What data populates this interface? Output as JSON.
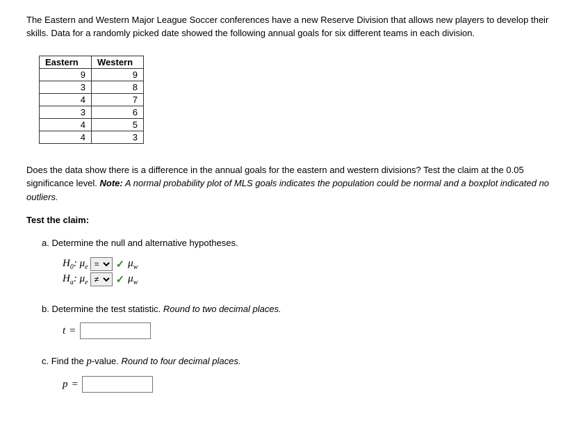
{
  "intro": "The Eastern and Western Major League Soccer conferences have a new Reserve Division that allows new players to develop their skills. Data for a randomly picked date showed the following annual goals for six different teams in each division.",
  "table": {
    "columns": [
      "Eastern",
      "Western"
    ],
    "rows": [
      [
        "9",
        "9"
      ],
      [
        "3",
        "8"
      ],
      [
        "4",
        "7"
      ],
      [
        "3",
        "6"
      ],
      [
        "4",
        "5"
      ],
      [
        "4",
        "3"
      ]
    ]
  },
  "question_text_1": "Does the data show there is a difference in the annual goals for the eastern and western divisions? Test the claim at the 0.05 significance level. ",
  "question_note_label": "Note:",
  "question_note_text": " A normal probability plot of MLS goals indicates the population could be normal and a boxplot indicated no outliers.",
  "test_claim_label": "Test the claim:",
  "part_a": {
    "label": "a. Determine the null and alternative hypotheses.",
    "h0_left": "H",
    "h0_sub": "0",
    "ha_left": "H",
    "ha_sub": "a",
    "mu_e": "μ",
    "mu_e_sub": "e",
    "mu_w": "μ",
    "mu_w_sub": "w",
    "h0_select_value": "=",
    "ha_select_value": "≠",
    "select_options": [
      "=",
      "≠",
      "<",
      ">"
    ]
  },
  "part_b": {
    "label_plain": "b. Determine the test statistic. ",
    "label_italic": "Round to two decimal places.",
    "var_letter": "t",
    "equals": "=",
    "input_value": ""
  },
  "part_c": {
    "label_prefix": "c. Find the ",
    "label_pvar": "p",
    "label_suffix": "-value. ",
    "label_italic": "Round to four decimal places.",
    "var_letter": "p",
    "equals": "=",
    "input_value": ""
  }
}
